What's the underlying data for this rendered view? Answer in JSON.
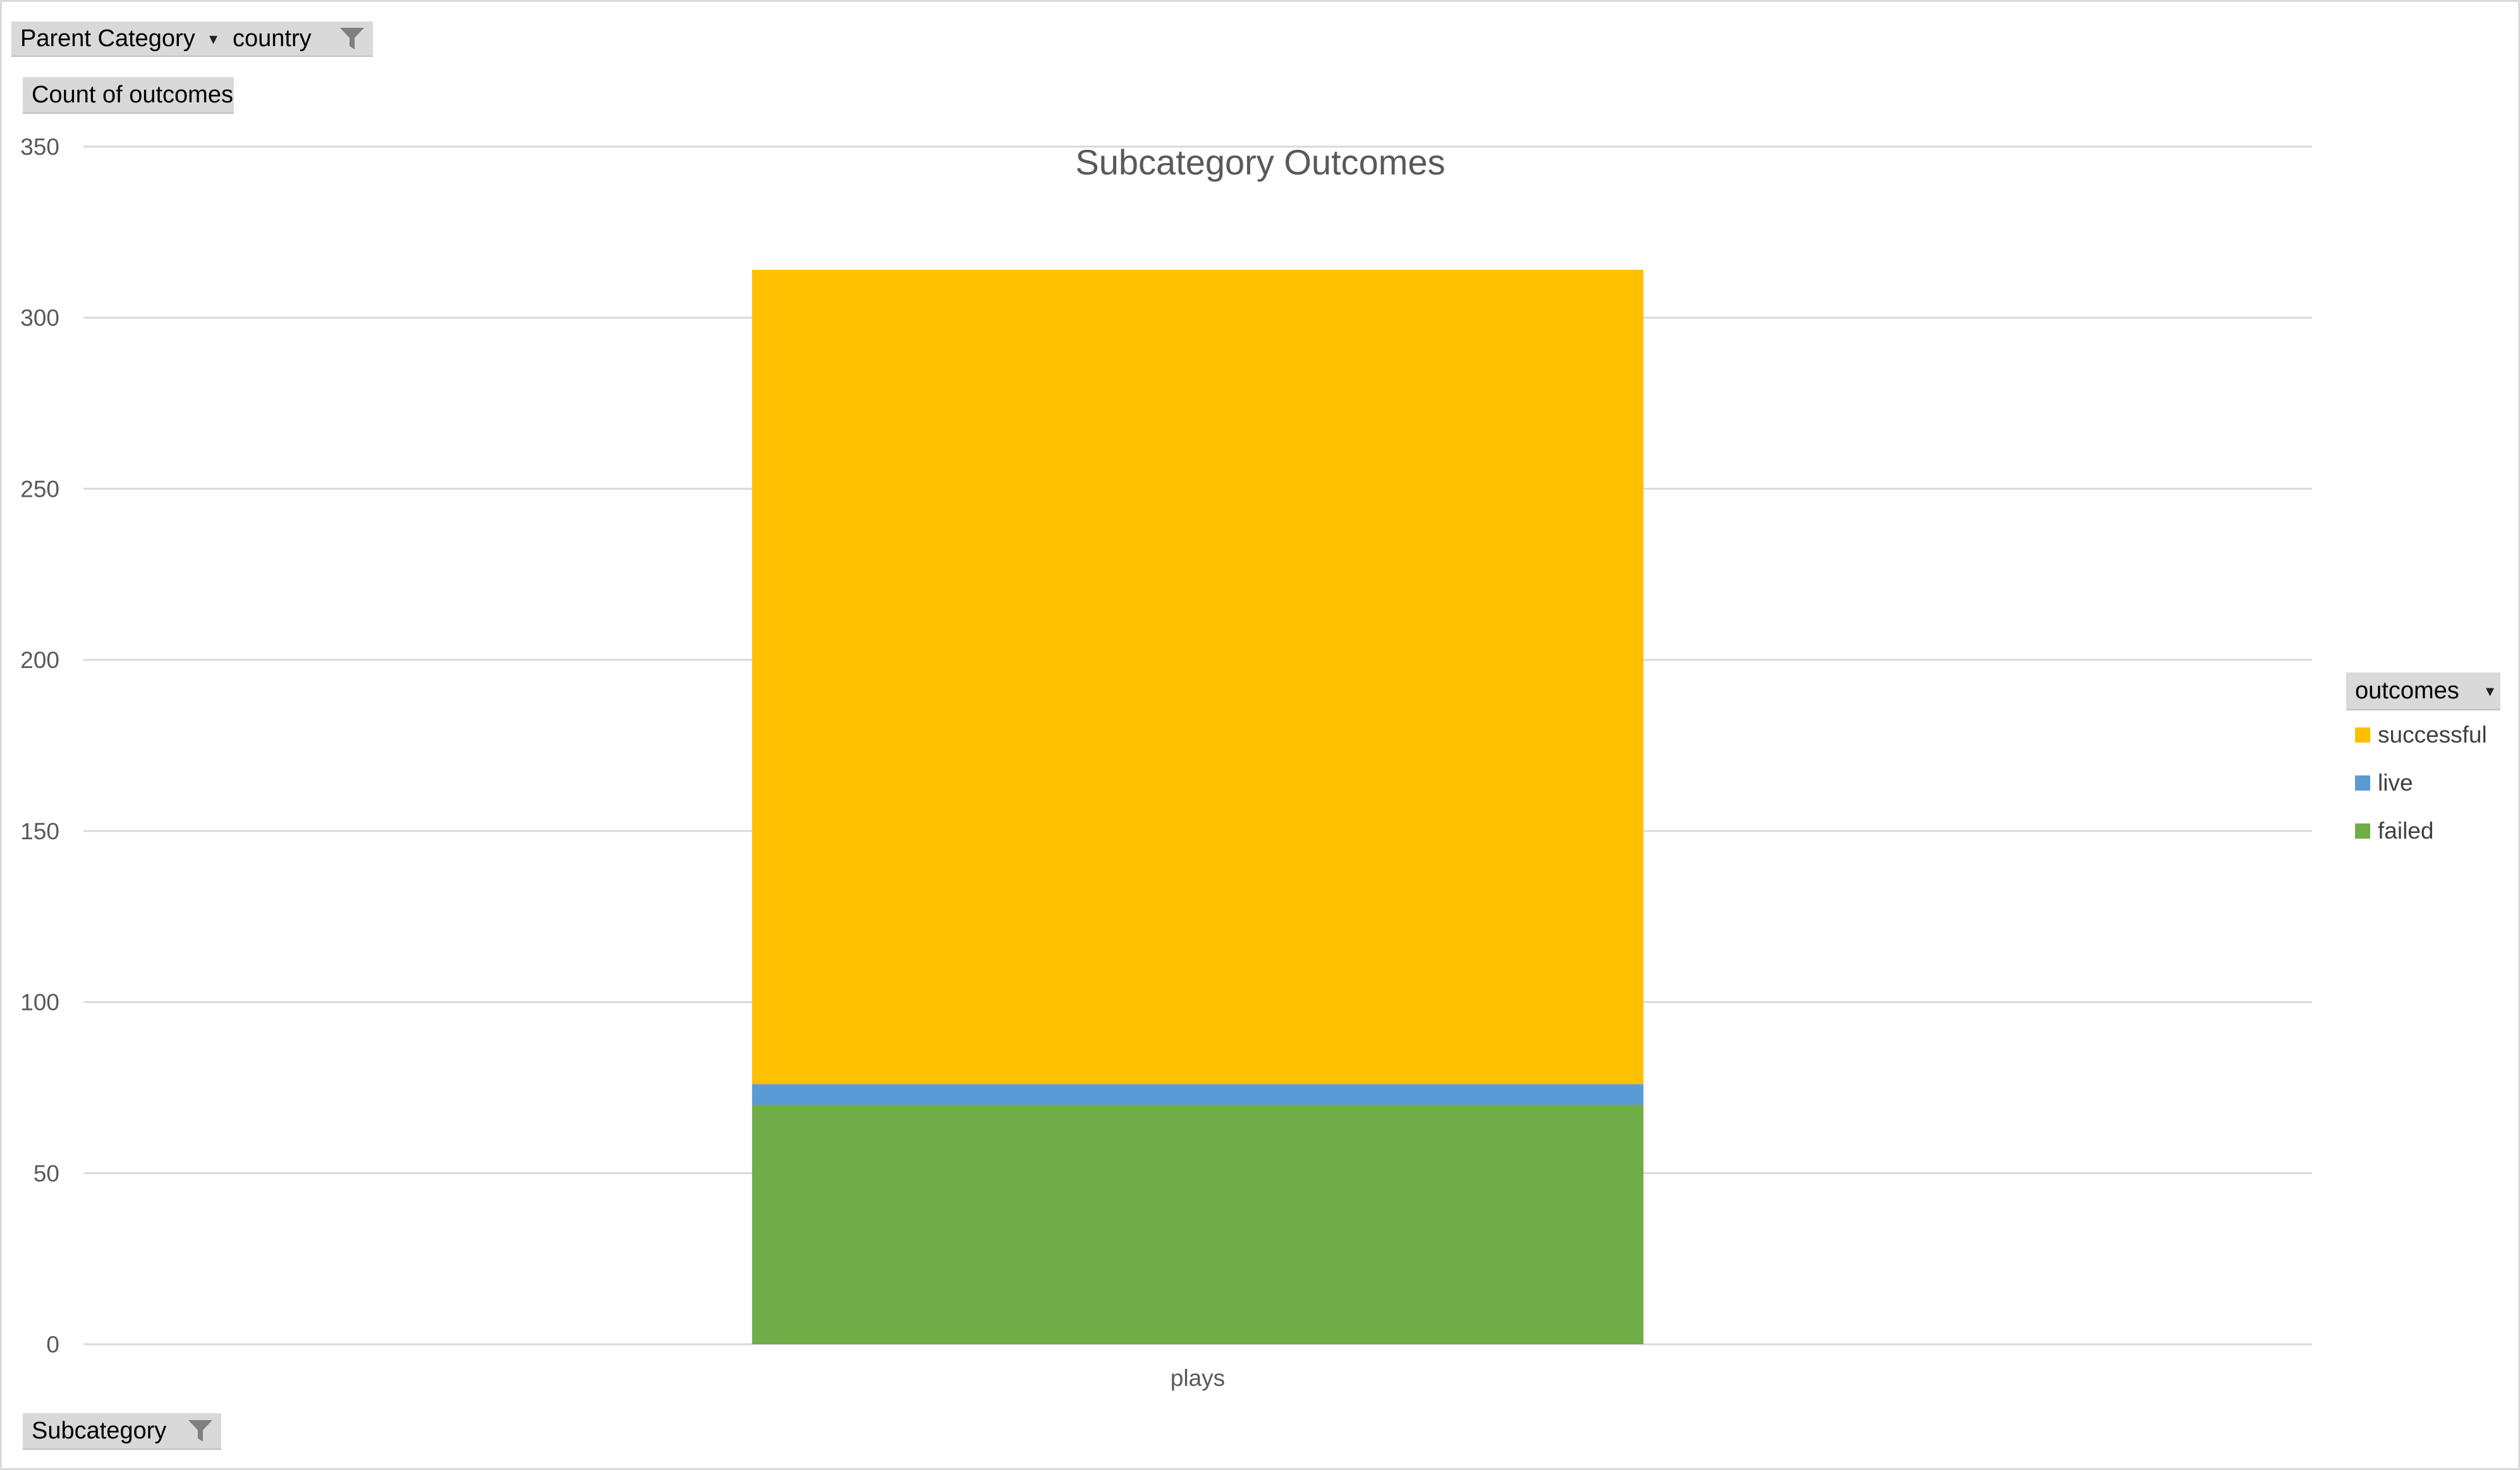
{
  "filters": {
    "parent_category": {
      "label": "Parent Category"
    },
    "country": {
      "label": "country"
    }
  },
  "value_field": {
    "label": "Count of outcomes"
  },
  "axis_field": {
    "label": "Subcategory"
  },
  "legend_field": {
    "label": "outcomes"
  },
  "chart_data": {
    "type": "bar",
    "stacked": true,
    "title": "Subcategory Outcomes",
    "xlabel": "",
    "ylabel": "",
    "categories": [
      "plays"
    ],
    "ylim": [
      0,
      350
    ],
    "yticks": [
      0,
      50,
      100,
      150,
      200,
      250,
      300,
      350
    ],
    "grid": true,
    "legend_position": "right",
    "series": [
      {
        "name": "failed",
        "color": "#70AD47",
        "values": [
          70
        ]
      },
      {
        "name": "live",
        "color": "#5B9BD5",
        "values": [
          6
        ]
      },
      {
        "name": "successful",
        "color": "#FFC000",
        "values": [
          238
        ]
      }
    ],
    "legend_order": [
      "successful",
      "live",
      "failed"
    ]
  }
}
